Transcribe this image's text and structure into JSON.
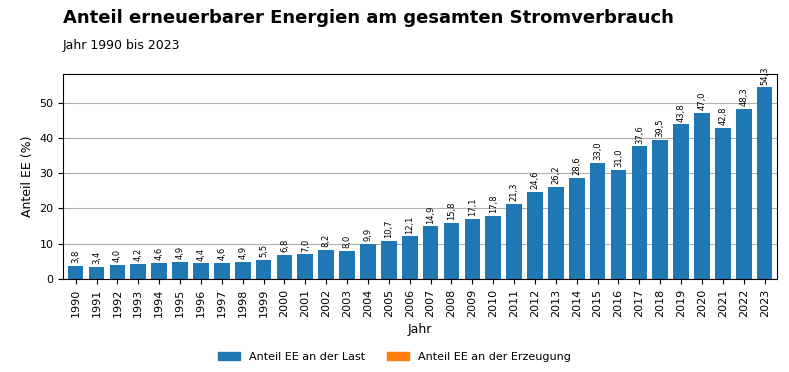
{
  "chart_data": {
    "type": "bar",
    "title": "Anteil erneuerbarer Energien am gesamten Stromverbrauch",
    "subtitle": "Jahr 1990 bis 2023",
    "x_label": "Jahr",
    "y_label": "Anteil EE (%)",
    "categories": [
      "1990",
      "1991",
      "1992",
      "1993",
      "1994",
      "1995",
      "1996",
      "1997",
      "1998",
      "1999",
      "2000",
      "2001",
      "2002",
      "2003",
      "2004",
      "2005",
      "2006",
      "2007",
      "2008",
      "2009",
      "2010",
      "2011",
      "2012",
      "2013",
      "2014",
      "2015",
      "2016",
      "2017",
      "2018",
      "2019",
      "2020",
      "2021",
      "2022",
      "2023"
    ],
    "series": [
      {
        "name": "Anteil EE an der Last",
        "values": [
          3.8,
          3.4,
          4.0,
          4.2,
          4.6,
          4.9,
          4.4,
          4.6,
          4.9,
          5.5,
          6.8,
          7.0,
          8.2,
          8.0,
          9.9,
          10.7,
          12.1,
          14.9,
          15.8,
          17.1,
          17.8,
          21.3,
          24.6,
          26.2,
          28.6,
          33.0,
          31.0,
          37.6,
          39.5,
          43.8,
          47.0,
          42.8,
          48.3,
          54.3
        ],
        "value_labels": [
          "3,8",
          "3,4",
          "4,0",
          "4,2",
          "4,6",
          "4,9",
          "4,4",
          "4,6",
          "4,9",
          "5,5",
          "6,8",
          "7,0",
          "8,2",
          "8,0",
          "9,9",
          "10,7",
          "12,1",
          "14,9",
          "15,8",
          "17,1",
          "17,8",
          "21,3",
          "24,6",
          "26,2",
          "28,6",
          "33,0",
          "31,0",
          "37,6",
          "39,5",
          "43,8",
          "47,0",
          "42,8",
          "48,3",
          "54,3"
        ]
      },
      {
        "name": "Anteil EE an der Erzeugung",
        "values": [
          null,
          null,
          null,
          null,
          null,
          null,
          null,
          null,
          null,
          null,
          null,
          null,
          null,
          null,
          null,
          null,
          null,
          null,
          null,
          null,
          null,
          null,
          null,
          null,
          null,
          null,
          null,
          null,
          null,
          null,
          null,
          null,
          null,
          null
        ]
      }
    ],
    "ylim": [
      0,
      58
    ],
    "yticks": [
      0,
      10,
      20,
      30,
      40,
      50
    ],
    "grid": true,
    "legend": "lower center",
    "data_labels": true
  }
}
